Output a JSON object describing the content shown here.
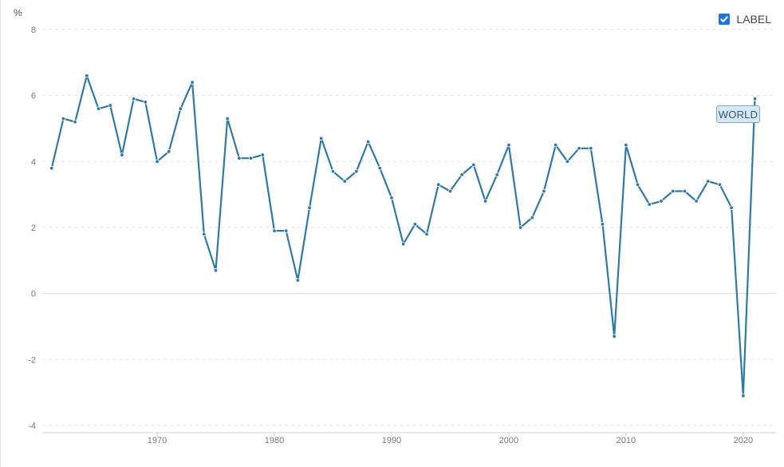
{
  "chart_data": {
    "type": "line",
    "y_unit": "%",
    "legend": {
      "label": "LABEL",
      "checked": true,
      "position": "top-right"
    },
    "series_label": "WORLD",
    "line_color": "#2f79a6",
    "grid": true,
    "ylim": [
      -4,
      8
    ],
    "xlim": [
      1960.2,
      2022.8
    ],
    "y_ticks": [
      {
        "value": -4,
        "label": "-4"
      },
      {
        "value": -2,
        "label": "-2"
      },
      {
        "value": 0,
        "label": "0"
      },
      {
        "value": 2,
        "label": "2"
      },
      {
        "value": 4,
        "label": "4"
      },
      {
        "value": 6,
        "label": "6"
      },
      {
        "value": 8,
        "label": "8"
      }
    ],
    "x_ticks": [
      {
        "value": 1970,
        "label": "1970"
      },
      {
        "value": 1980,
        "label": "1980"
      },
      {
        "value": 1990,
        "label": "1990"
      },
      {
        "value": 2000,
        "label": "2000"
      },
      {
        "value": 2010,
        "label": "2010"
      },
      {
        "value": 2020,
        "label": "2020"
      }
    ],
    "series": [
      {
        "name": "WORLD",
        "x": [
          1961,
          1962,
          1963,
          1964,
          1965,
          1966,
          1967,
          1968,
          1969,
          1970,
          1971,
          1972,
          1973,
          1974,
          1975,
          1976,
          1977,
          1978,
          1979,
          1980,
          1981,
          1982,
          1983,
          1984,
          1985,
          1986,
          1987,
          1988,
          1989,
          1990,
          1991,
          1992,
          1993,
          1994,
          1995,
          1996,
          1997,
          1998,
          1999,
          2000,
          2001,
          2002,
          2003,
          2004,
          2005,
          2006,
          2007,
          2008,
          2009,
          2010,
          2011,
          2012,
          2013,
          2014,
          2015,
          2016,
          2017,
          2018,
          2019,
          2020,
          2021
        ],
        "values": [
          3.8,
          5.3,
          5.2,
          6.6,
          5.6,
          5.7,
          4.2,
          5.9,
          5.8,
          4.0,
          4.3,
          5.6,
          6.4,
          1.8,
          0.7,
          5.3,
          4.1,
          4.1,
          4.2,
          1.9,
          1.9,
          0.4,
          2.6,
          4.7,
          3.7,
          3.4,
          3.7,
          4.6,
          3.8,
          2.9,
          1.5,
          2.1,
          1.8,
          3.3,
          3.1,
          3.6,
          3.9,
          2.8,
          3.6,
          4.5,
          2.0,
          2.3,
          3.1,
          4.5,
          4.0,
          4.4,
          4.4,
          2.1,
          -1.3,
          4.5,
          3.3,
          2.7,
          2.8,
          3.1,
          3.1,
          2.8,
          3.4,
          3.3,
          2.6,
          -3.1,
          5.9
        ]
      }
    ]
  }
}
